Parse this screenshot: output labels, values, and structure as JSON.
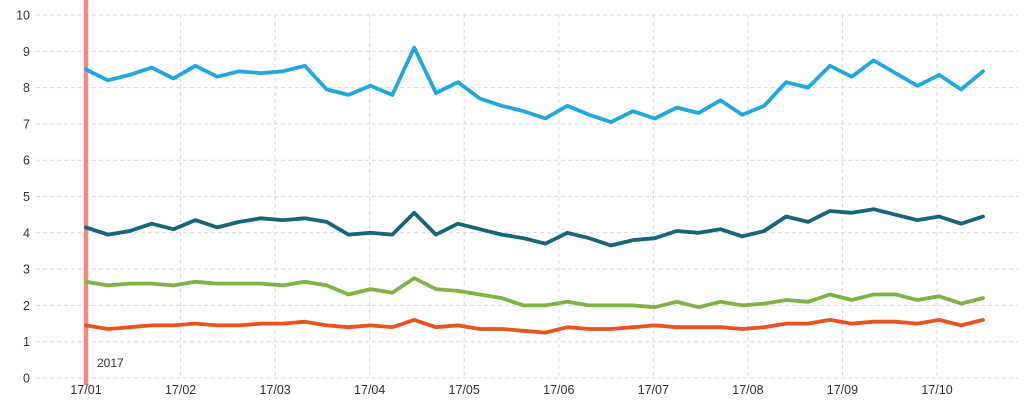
{
  "chart_data": {
    "type": "line",
    "description": "Multi-series weekly time-series line chart for year 2017, no legend, no title",
    "x_tick_labels": [
      "17/01",
      "17/02",
      "17/03",
      "17/04",
      "17/05",
      "17/06",
      "17/07",
      "17/08",
      "17/09",
      "17/10"
    ],
    "y_tick_labels": [
      "0",
      "1",
      "2",
      "3",
      "4",
      "5",
      "6",
      "7",
      "8",
      "9",
      "10"
    ],
    "ylim": [
      0,
      10
    ],
    "grid": "dashed, horizontal for every integer 0-10 and vertical per month",
    "legend": "none",
    "annotation": {
      "label": "2017",
      "type": "vertical-line-at-first-tick",
      "color": "#f4898b",
      "text_color": "#ee8287"
    },
    "points_per_series": 42,
    "sampling": "weekly points starting at 17/01",
    "series": [
      {
        "name": "series-1-sky-blue",
        "color": "#1ea7e0",
        "values": [
          8.5,
          8.2,
          8.35,
          8.55,
          8.25,
          8.6,
          8.3,
          8.45,
          8.4,
          8.45,
          8.6,
          7.95,
          7.8,
          8.05,
          7.8,
          9.1,
          7.85,
          8.15,
          7.7,
          7.5,
          7.35,
          7.15,
          7.5,
          7.25,
          7.05,
          7.35,
          7.15,
          7.45,
          7.3,
          7.65,
          7.25,
          7.5,
          8.15,
          8.0,
          8.6,
          8.3,
          8.75,
          8.4,
          8.05,
          8.35,
          7.95,
          8.45
        ]
      },
      {
        "name": "series-2-dark-teal",
        "color": "#186479",
        "values": [
          4.15,
          3.95,
          4.05,
          4.25,
          4.1,
          4.35,
          4.15,
          4.3,
          4.4,
          4.35,
          4.4,
          4.3,
          3.95,
          4.0,
          3.95,
          4.55,
          3.95,
          4.25,
          4.1,
          3.95,
          3.85,
          3.7,
          4.0,
          3.85,
          3.65,
          3.8,
          3.85,
          4.05,
          4.0,
          4.1,
          3.9,
          4.05,
          4.45,
          4.3,
          4.6,
          4.55,
          4.65,
          4.5,
          4.35,
          4.45,
          4.25,
          4.45
        ]
      },
      {
        "name": "series-3-green",
        "color": "#7cb543",
        "values": [
          2.65,
          2.55,
          2.6,
          2.6,
          2.55,
          2.65,
          2.6,
          2.6,
          2.6,
          2.55,
          2.65,
          2.55,
          2.3,
          2.45,
          2.35,
          2.75,
          2.45,
          2.4,
          2.3,
          2.2,
          2.0,
          2.0,
          2.1,
          2.0,
          2.0,
          2.0,
          1.95,
          2.1,
          1.95,
          2.1,
          2.0,
          2.05,
          2.15,
          2.1,
          2.3,
          2.15,
          2.3,
          2.3,
          2.15,
          2.25,
          2.05,
          2.2
        ]
      },
      {
        "name": "series-4-orange",
        "color": "#ea5320",
        "values": [
          1.45,
          1.35,
          1.4,
          1.45,
          1.45,
          1.5,
          1.45,
          1.45,
          1.5,
          1.5,
          1.55,
          1.45,
          1.4,
          1.45,
          1.4,
          1.6,
          1.4,
          1.45,
          1.35,
          1.35,
          1.3,
          1.25,
          1.4,
          1.35,
          1.35,
          1.4,
          1.45,
          1.4,
          1.4,
          1.4,
          1.35,
          1.4,
          1.5,
          1.5,
          1.6,
          1.5,
          1.55,
          1.55,
          1.5,
          1.6,
          1.45,
          1.6
        ]
      }
    ],
    "colors": {
      "gridline": "#d9d9d9",
      "axis_text": "#333333",
      "background": "#ffffff"
    }
  }
}
